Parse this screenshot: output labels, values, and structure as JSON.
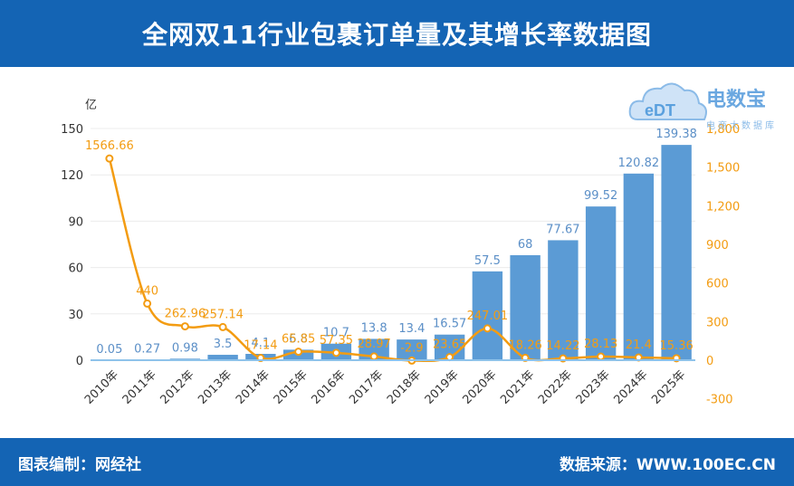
{
  "header": {
    "title": "全网双11行业包裹订单量及其增长率数据图"
  },
  "footer": {
    "left": "图表编制：网经社",
    "right": "数据来源：WWW.100EC.CN"
  },
  "logo": {
    "text": "电数宝",
    "sub": "电商大数据库",
    "badge": "eDT"
  },
  "colors": {
    "bar": "#5b9bd5",
    "line": "#f39c12",
    "header": "#1464b4",
    "bar_label": "#5b8fc7"
  },
  "chart_data": {
    "type": "bar",
    "categories": [
      "2010年",
      "2011年",
      "2012年",
      "2013年",
      "2014年",
      "2015年",
      "2016年",
      "2017年",
      "2018年",
      "2019年",
      "2020年",
      "2021年",
      "2022年",
      "2023年",
      "2024年",
      "2025年"
    ],
    "series": [
      {
        "values": [
          0.05,
          0.27,
          0.98,
          3.5,
          4.1,
          6.8,
          10.7,
          13.8,
          13.4,
          16.57,
          57.5,
          68,
          77.67,
          99.52,
          120.82,
          139.38
        ],
        "axis": "left",
        "kind": "bar"
      },
      {
        "values": [
          1566.66,
          440,
          262.96,
          257.14,
          17.14,
          65.85,
          57.35,
          28.97,
          -2.9,
          23.65,
          247.01,
          18.26,
          14.22,
          28.13,
          21.4,
          15.36
        ],
        "axis": "right",
        "kind": "line"
      }
    ],
    "bar_labels": [
      "0.05",
      "0.27",
      "0.98",
      "3.5",
      "4.1",
      "6.8",
      "10.7",
      "13.8",
      "13.4",
      "16.57",
      "57.5",
      "68",
      "77.67",
      "99.52",
      "120.82",
      "139.38"
    ],
    "line_labels": [
      "1566.66",
      "440",
      "262.96",
      "257.14",
      "17.14",
      "65.85",
      "57.35",
      "28.97",
      "-2.9",
      "23.65",
      "247.01",
      "18.26",
      "14.22",
      "28.13",
      "21.4",
      "15.36"
    ],
    "ylabel_left": "亿",
    "ylabel_right": "%",
    "ylim_left": [
      0,
      150
    ],
    "yticks_left": [
      "0",
      "30",
      "60",
      "90",
      "120",
      "150"
    ],
    "ylim_right": [
      -300,
      1800
    ],
    "yticks_right": [
      "-300",
      "0",
      "300",
      "600",
      "900",
      "1,200",
      "1,500",
      "1,800"
    ],
    "grid": true
  }
}
